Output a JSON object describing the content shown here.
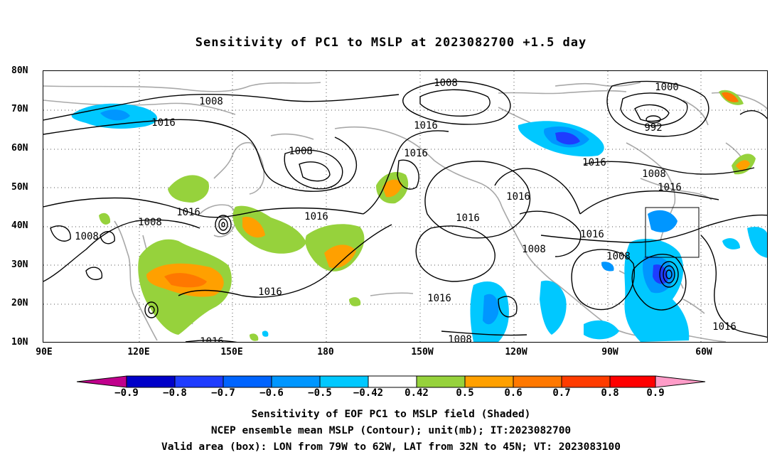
{
  "title": "Sensitivity of PC1 to MSLP at 2023082700 +1.5 day",
  "lat_labels": [
    "80N",
    "70N",
    "60N",
    "50N",
    "40N",
    "30N",
    "20N",
    "10N"
  ],
  "lon_labels": [
    "90E",
    "120E",
    "150E",
    "180",
    "150W",
    "120W",
    "90W",
    "60W"
  ],
  "contour_labels": [
    "1008",
    "1016",
    "1016",
    "1008",
    "1016",
    "1008",
    "1016",
    "1008",
    "1016",
    "1016",
    "1008",
    "1016",
    "1016",
    "1016",
    "1000",
    "992",
    "1016",
    "1008",
    "1016",
    "1016",
    "1008",
    "1008",
    "1016",
    "1016",
    "1008"
  ],
  "colorbar": {
    "labels": [
      "−0.9",
      "−0.8",
      "−0.7",
      "−0.6",
      "−0.5",
      "−0.42",
      "0.42",
      "0.5",
      "0.6",
      "0.7",
      "0.8",
      "0.9"
    ],
    "colors": [
      "#c0008c",
      "#0000c8",
      "#1e3cff",
      "#0064ff",
      "#0096ff",
      "#00c8ff",
      "#ffffff",
      "#96d23c",
      "#ffa000",
      "#ff7800",
      "#ff3c00",
      "#ff0000",
      "#ff9cc8"
    ]
  },
  "caption": [
    "Sensitivity of EOF PC1 to MSLP field (Shaded)",
    "NCEP ensemble mean MSLP (Contour); unit(mb); IT:2023082700",
    "Valid area (box): LON from 79W to 62W, LAT from 32N to 45N; VT: 2023083100"
  ]
}
